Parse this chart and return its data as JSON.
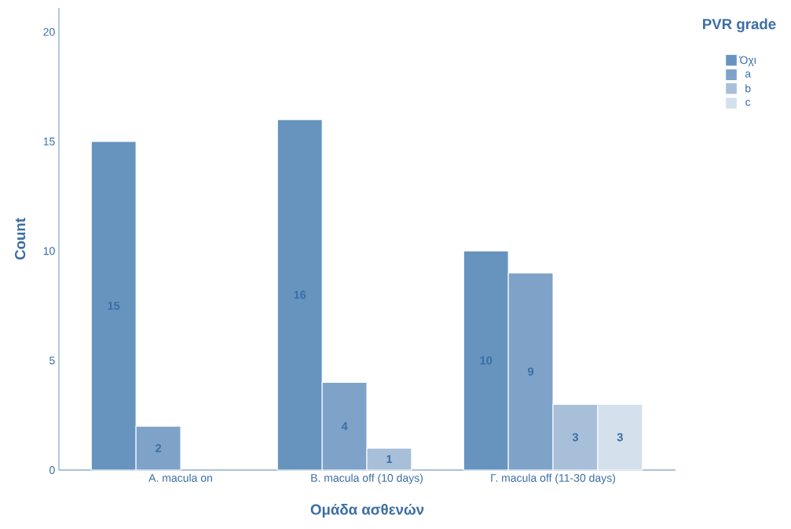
{
  "chart_data": {
    "type": "bar",
    "xlabel": "Ομάδα ασθενών",
    "ylabel": "Count",
    "legend_title": "PVR grade",
    "categories": [
      "A. macula on",
      "B. macula off (10 days)",
      "Γ. macula off (11-30 days)"
    ],
    "series": [
      {
        "name": "Όχι",
        "color": "#6794bf",
        "values": [
          15,
          16,
          10
        ]
      },
      {
        "name": "a",
        "color": "#7fa3c8",
        "values": [
          2,
          4,
          9
        ]
      },
      {
        "name": "b",
        "color": "#a7bfd9",
        "values": [
          null,
          1,
          3
        ]
      },
      {
        "name": "c",
        "color": "#d4e0ec",
        "values": [
          null,
          null,
          3
        ]
      }
    ],
    "ylim": [
      0,
      21.1
    ],
    "yticks": [
      0,
      5,
      10,
      15,
      20
    ],
    "grid": false,
    "legend": "top right",
    "data_labels": true
  }
}
